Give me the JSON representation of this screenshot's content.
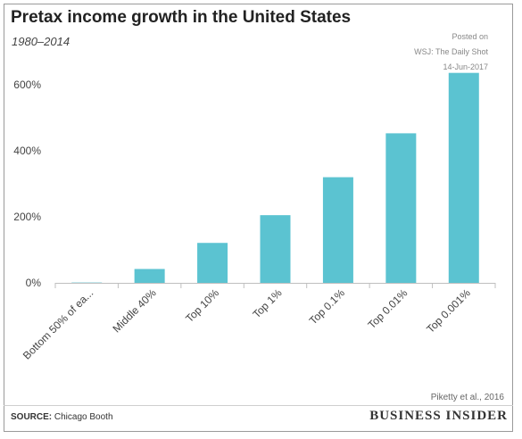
{
  "chart_data": {
    "type": "bar",
    "title": "Pretax income growth in the United States",
    "subtitle": "1980–2014",
    "categories": [
      "Bottom 50% of ea...",
      "Middle 40%",
      "Top 10%",
      "Top 1%",
      "Top 0.1%",
      "Top 0.01%",
      "Top 0.001%"
    ],
    "values": [
      1,
      42,
      121,
      205,
      320,
      453,
      636
    ],
    "yticks": [
      "0%",
      "200%",
      "400%",
      "600%"
    ],
    "ytick_values": [
      0,
      200,
      400,
      600
    ],
    "ylim": [
      0,
      660
    ],
    "bar_color": "#5bc3d1",
    "grid": false
  },
  "annotation": {
    "line1": "Posted on",
    "line2": "WSJ: The Daily Shot",
    "line3": "14-Jun-2017"
  },
  "credit": "Piketty et al., 2016",
  "source": {
    "label": "SOURCE:",
    "text": " Chicago Booth"
  },
  "brand": "BUSINESS INSIDER"
}
